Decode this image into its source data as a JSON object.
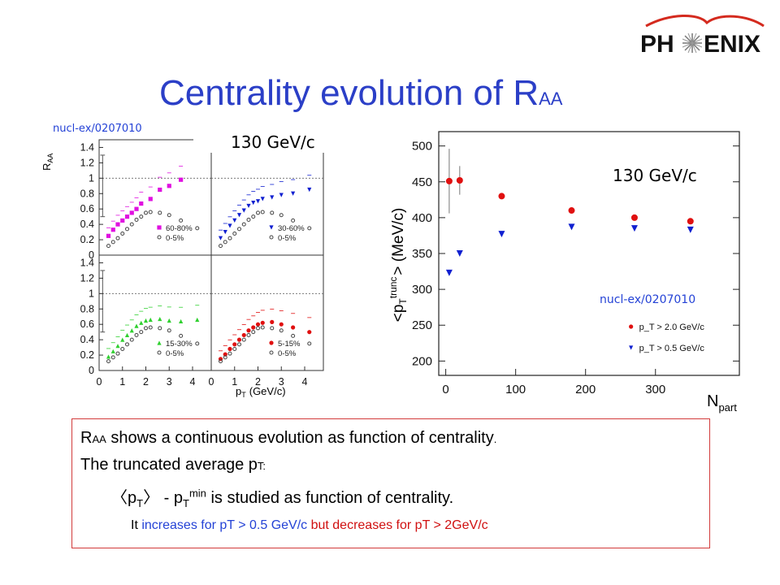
{
  "logo": {
    "text": "PH",
    "text2": "ENIX"
  },
  "title": {
    "main": "Centrality evolution of R",
    "sub": "AA"
  },
  "left_panel": {
    "ref": "nucl-ex/0207010",
    "energy": "130 GeV/c",
    "ylabel": "R",
    "ylabel_sub": "AA",
    "xlabel": "p",
    "xlabel_sub": "T",
    "xlabel_unit": "(GeV/c)",
    "yticks": [
      "1.4",
      "1.2",
      "1",
      "0.8",
      "0.6",
      "0.4",
      "0.2",
      "0"
    ],
    "xticks": [
      "0",
      "1",
      "2",
      "3",
      "4"
    ]
  },
  "right_panel": {
    "energy": "130 GeV/c",
    "ref": "nucl-ex/0207010",
    "ylabel": "<p",
    "ylabel_sub": "T",
    "ylabel_sup": "trunc",
    "ylabel_end": "> (MeV/c)",
    "xlabel": "N",
    "xlabel_sub": "part"
  },
  "chart_data": [
    {
      "type": "scatter",
      "title": "",
      "xlabel": "p_T (GeV/c)",
      "ylabel": "R_AA",
      "xlim": [
        0,
        4.8
      ],
      "ylim": [
        0,
        1.5
      ],
      "panels": [
        {
          "name": "60-80% vs 0-5%",
          "series": [
            {
              "name": "60-80%",
              "color": "#e010e0",
              "marker": "square",
              "x": [
                0.4,
                0.6,
                0.8,
                1.0,
                1.2,
                1.4,
                1.6,
                1.8,
                2.2,
                2.6,
                3.0,
                3.5
              ],
              "y": [
                0.25,
                0.33,
                0.4,
                0.45,
                0.5,
                0.55,
                0.6,
                0.67,
                0.73,
                0.85,
                0.9,
                0.98
              ]
            },
            {
              "name": "0-5%",
              "color": "#444444",
              "marker": "circle",
              "x": [
                0.4,
                0.6,
                0.8,
                1.0,
                1.2,
                1.4,
                1.6,
                1.8,
                2.0,
                2.2,
                2.6,
                3.0,
                3.5,
                4.2
              ],
              "y": [
                0.12,
                0.17,
                0.22,
                0.28,
                0.34,
                0.4,
                0.46,
                0.5,
                0.55,
                0.56,
                0.55,
                0.52,
                0.45,
                0.35
              ]
            }
          ]
        },
        {
          "name": "30-60% vs 0-5%",
          "series": [
            {
              "name": "30-60%",
              "color": "#1020d0",
              "marker": "triangle-down",
              "x": [
                0.4,
                0.6,
                0.8,
                1.0,
                1.2,
                1.4,
                1.6,
                1.8,
                2.0,
                2.2,
                2.6,
                3.0,
                3.5,
                4.2
              ],
              "y": [
                0.22,
                0.3,
                0.38,
                0.45,
                0.52,
                0.58,
                0.64,
                0.68,
                0.7,
                0.73,
                0.75,
                0.78,
                0.8,
                0.85
              ]
            },
            {
              "name": "0-5%",
              "color": "#444444",
              "marker": "circle",
              "x": [
                0.4,
                0.6,
                0.8,
                1.0,
                1.2,
                1.4,
                1.6,
                1.8,
                2.0,
                2.2,
                2.6,
                3.0,
                3.5,
                4.2
              ],
              "y": [
                0.12,
                0.17,
                0.22,
                0.28,
                0.34,
                0.4,
                0.46,
                0.5,
                0.55,
                0.56,
                0.55,
                0.52,
                0.45,
                0.35
              ]
            }
          ]
        },
        {
          "name": "15-30% vs 0-5%",
          "series": [
            {
              "name": "15-30%",
              "color": "#30d030",
              "marker": "triangle-up",
              "x": [
                0.4,
                0.6,
                0.8,
                1.0,
                1.2,
                1.4,
                1.6,
                1.8,
                2.0,
                2.2,
                2.6,
                3.0,
                3.5,
                4.2
              ],
              "y": [
                0.18,
                0.25,
                0.32,
                0.4,
                0.46,
                0.52,
                0.58,
                0.62,
                0.65,
                0.66,
                0.67,
                0.65,
                0.64,
                0.66
              ]
            },
            {
              "name": "0-5%",
              "color": "#444444",
              "marker": "circle",
              "x": [
                0.4,
                0.6,
                0.8,
                1.0,
                1.2,
                1.4,
                1.6,
                1.8,
                2.0,
                2.2,
                2.6,
                3.0,
                3.5,
                4.2
              ],
              "y": [
                0.12,
                0.17,
                0.22,
                0.28,
                0.34,
                0.4,
                0.46,
                0.5,
                0.55,
                0.56,
                0.55,
                0.52,
                0.45,
                0.35
              ]
            }
          ]
        },
        {
          "name": "5-15% vs 0-5%",
          "series": [
            {
              "name": "5-15%",
              "color": "#e01010",
              "marker": "circle",
              "x": [
                0.4,
                0.6,
                0.8,
                1.0,
                1.2,
                1.4,
                1.6,
                1.8,
                2.0,
                2.2,
                2.6,
                3.0,
                3.5,
                4.2
              ],
              "y": [
                0.15,
                0.21,
                0.28,
                0.34,
                0.4,
                0.46,
                0.52,
                0.56,
                0.6,
                0.62,
                0.63,
                0.6,
                0.56,
                0.5
              ]
            },
            {
              "name": "0-5%",
              "color": "#444444",
              "marker": "circle",
              "x": [
                0.4,
                0.6,
                0.8,
                1.0,
                1.2,
                1.4,
                1.6,
                1.8,
                2.0,
                2.2,
                2.6,
                3.0,
                3.5,
                4.2
              ],
              "y": [
                0.12,
                0.17,
                0.22,
                0.28,
                0.34,
                0.4,
                0.46,
                0.5,
                0.55,
                0.56,
                0.55,
                0.52,
                0.45,
                0.35
              ]
            }
          ]
        }
      ],
      "legends": [
        [
          "60-80%",
          "0-5%"
        ],
        [
          "30-60%",
          "0-5%"
        ],
        [
          "15-30%",
          "0-5%"
        ],
        [
          "5-15%",
          "0-5%"
        ]
      ]
    },
    {
      "type": "scatter",
      "title": "",
      "xlabel": "N_part",
      "ylabel": "<p_T^trunc> (MeV/c)",
      "xlim": [
        -10,
        420
      ],
      "ylim": [
        180,
        520
      ],
      "xticks": [
        0,
        100,
        200,
        300
      ],
      "yticks": [
        200,
        250,
        300,
        350,
        400,
        450,
        500
      ],
      "legend_placement": "bottom-right",
      "series": [
        {
          "name": "p_T > 2.0 GeV/c",
          "color": "#e01010",
          "marker": "circle",
          "x": [
            5,
            20,
            80,
            180,
            270,
            350
          ],
          "y": [
            451,
            452,
            430,
            410,
            400,
            395
          ],
          "err": [
            45,
            20,
            0,
            0,
            0,
            0
          ]
        },
        {
          "name": "p_T > 0.5 GeV/c",
          "color": "#1020d0",
          "marker": "triangle-down",
          "x": [
            5,
            20,
            80,
            180,
            270,
            350
          ],
          "y": [
            323,
            350,
            377,
            387,
            385,
            383
          ]
        }
      ]
    }
  ],
  "text_box": {
    "l1_r": "R",
    "l1_aa": "AA",
    "l1_rest": " shows a continuous evolution as function of centrality",
    "l1_dot": ".",
    "l2_main": "The truncated average p",
    "l2_sub": "T:",
    "l3_open": "〈p",
    "l3_sub1": "T",
    "l3_close": "〉 - p",
    "l3_sub2": "T",
    "l3_sup": "min",
    "l3_rest": " is studied as function of centrality.",
    "l4_a": "It ",
    "l4_b": "increases for pT > 0.5 GeV/c ",
    "l4_c": "but decreases for pT  > 2GeV/c"
  }
}
